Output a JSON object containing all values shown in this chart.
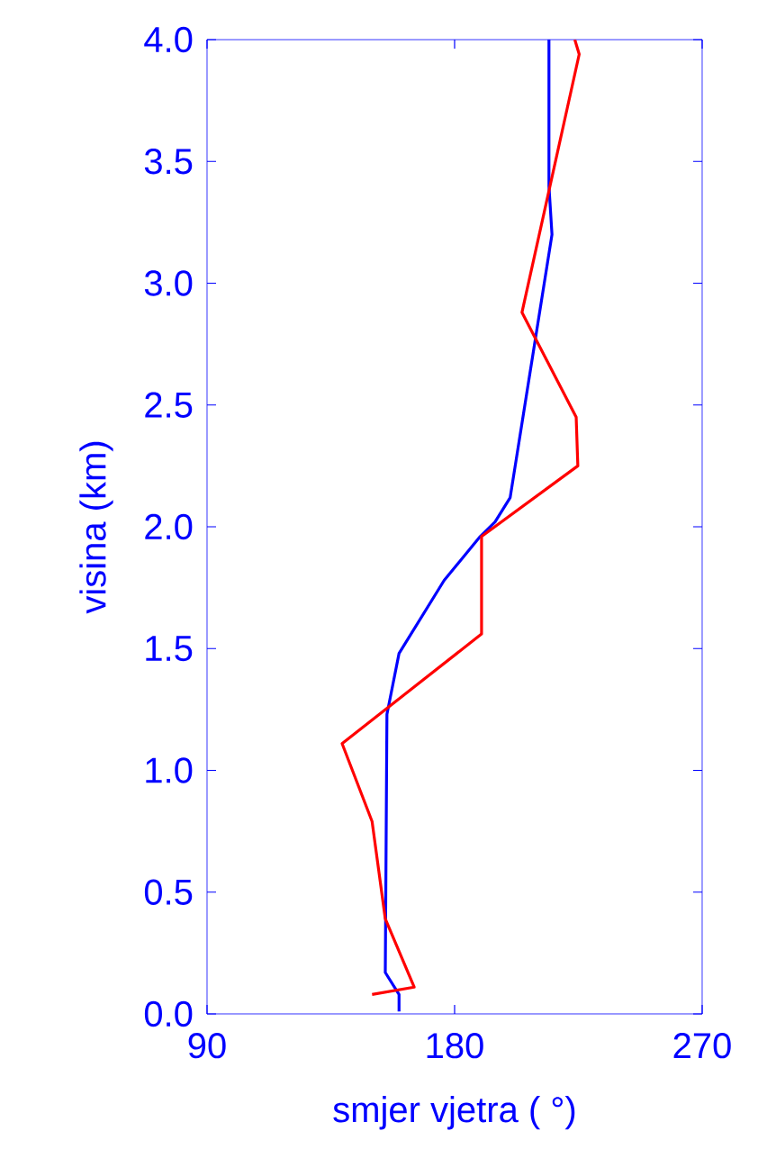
{
  "chart_data": {
    "type": "line",
    "xlabel": "smjer vjetra ( °)",
    "ylabel": "visina (km)",
    "xlim": [
      90,
      270
    ],
    "ylim": [
      0,
      4
    ],
    "xticks": [
      90,
      180,
      270
    ],
    "yticks": [
      {
        "value": 0,
        "label": "0.0"
      },
      {
        "value": 0.5,
        "label": "0.5"
      },
      {
        "value": 1,
        "label": "1.0"
      },
      {
        "value": 1.5,
        "label": "1.5"
      },
      {
        "value": 2,
        "label": "2.0"
      },
      {
        "value": 2.5,
        "label": "2.5"
      },
      {
        "value": 3,
        "label": "3.0"
      },
      {
        "value": 3.5,
        "label": "3.5"
      },
      {
        "value": 4,
        "label": "4.0"
      }
    ],
    "grid": false,
    "marker": "none",
    "line_style": "solid",
    "series": [
      {
        "color": "#0000ff",
        "x": [
          159.8,
          159.8,
          154.8,
          155.4,
          159.8,
          176.2,
          189.3,
          194.7,
          200.2,
          215.4,
          214.3,
          214.3
        ],
        "values": [
          0.01,
          0.08,
          0.17,
          1.23,
          1.48,
          1.78,
          1.96,
          2.02,
          2.12,
          3.2,
          3.4,
          4.0
        ]
      },
      {
        "color": "#ff0000",
        "x": [
          150,
          165.3,
          154.8,
          150,
          139.1,
          189.8,
          189.8,
          224.8,
          224.2,
          204.5,
          225.3,
          223.7
        ],
        "values": [
          0.08,
          0.11,
          0.39,
          0.79,
          1.11,
          1.56,
          1.96,
          2.25,
          2.45,
          2.88,
          3.94,
          4.0
        ]
      }
    ]
  }
}
